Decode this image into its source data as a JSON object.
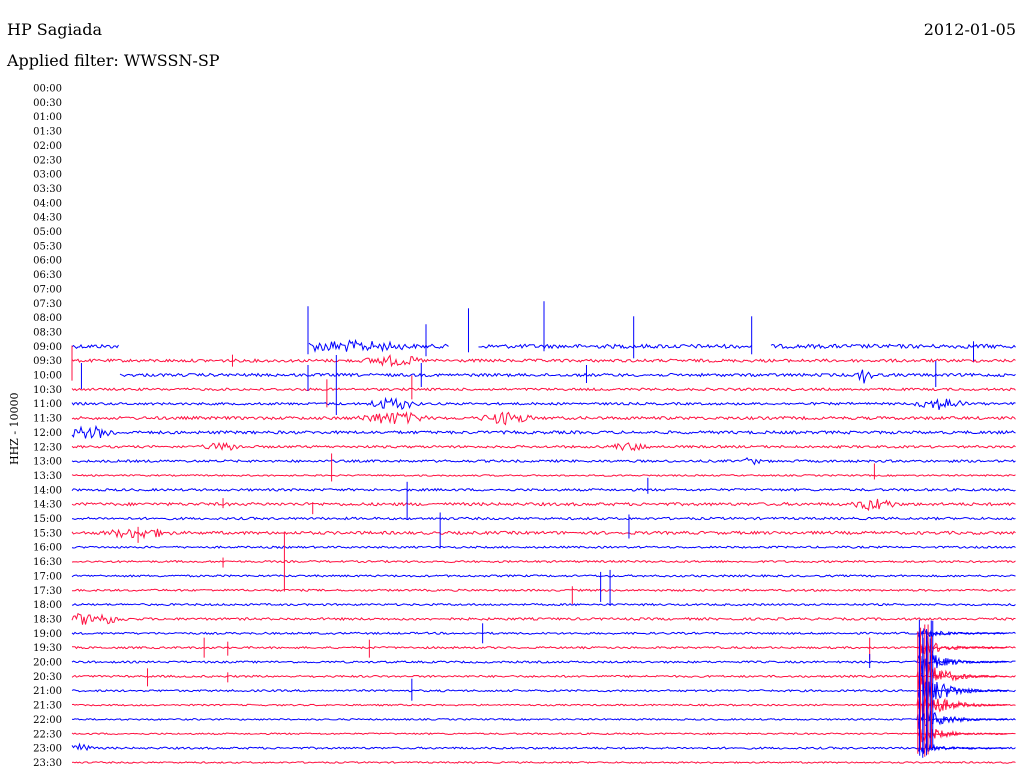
{
  "header": {
    "station": "HP Sagiada",
    "date": "2012-01-05",
    "filter": "Applied filter: WWSSN-SP"
  },
  "chart_data": {
    "type": "line",
    "ylabel": "HHZ - 10000",
    "colors": {
      "a": "#ff1040",
      "b": "#0000ff"
    },
    "rows": [
      {
        "label": "00:00",
        "trace": false
      },
      {
        "label": "00:30",
        "trace": false
      },
      {
        "label": "01:00",
        "trace": false
      },
      {
        "label": "01:30",
        "trace": false
      },
      {
        "label": "02:00",
        "trace": false
      },
      {
        "label": "02:30",
        "trace": false
      },
      {
        "label": "03:00",
        "trace": false
      },
      {
        "label": "03:30",
        "trace": false
      },
      {
        "label": "04:00",
        "trace": false
      },
      {
        "label": "04:30",
        "trace": false
      },
      {
        "label": "05:00",
        "trace": false
      },
      {
        "label": "05:30",
        "trace": false
      },
      {
        "label": "06:00",
        "trace": false
      },
      {
        "label": "06:30",
        "trace": false
      },
      {
        "label": "07:00",
        "trace": false
      },
      {
        "label": "07:30",
        "trace": false
      },
      {
        "label": "08:00",
        "trace": false
      },
      {
        "label": "08:30",
        "trace": false
      },
      {
        "label": "09:00",
        "trace": true,
        "color": "b",
        "noise": 2,
        "gaps": [
          [
            0.05,
            0.25
          ],
          [
            0.4,
            0.43
          ],
          [
            0.72,
            0.74
          ]
        ]
      },
      {
        "label": "09:30",
        "trace": true,
        "color": "a",
        "noise": 1.5
      },
      {
        "label": "10:00",
        "trace": true,
        "color": "b",
        "noise": 1.5,
        "gaps": [
          [
            0.0,
            0.05
          ]
        ]
      },
      {
        "label": "10:30",
        "trace": true,
        "color": "a",
        "noise": 1.2
      },
      {
        "label": "11:00",
        "trace": true,
        "color": "b",
        "noise": 1.2
      },
      {
        "label": "11:30",
        "trace": true,
        "color": "a",
        "noise": 1.5
      },
      {
        "label": "12:00",
        "trace": true,
        "color": "b",
        "noise": 1.5
      },
      {
        "label": "12:30",
        "trace": true,
        "color": "a",
        "noise": 1.2
      },
      {
        "label": "13:00",
        "trace": true,
        "color": "b",
        "noise": 1.2
      },
      {
        "label": "13:30",
        "trace": true,
        "color": "a",
        "noise": 0.8
      },
      {
        "label": "14:00",
        "trace": true,
        "color": "b",
        "noise": 1.2
      },
      {
        "label": "14:30",
        "trace": true,
        "color": "a",
        "noise": 1.5
      },
      {
        "label": "15:00",
        "trace": true,
        "color": "b",
        "noise": 1.2
      },
      {
        "label": "15:30",
        "trace": true,
        "color": "a",
        "noise": 1.5
      },
      {
        "label": "16:00",
        "trace": true,
        "color": "b",
        "noise": 1.0
      },
      {
        "label": "16:30",
        "trace": true,
        "color": "a",
        "noise": 1.0
      },
      {
        "label": "17:00",
        "trace": true,
        "color": "b",
        "noise": 1.0
      },
      {
        "label": "17:30",
        "trace": true,
        "color": "a",
        "noise": 1.0
      },
      {
        "label": "18:00",
        "trace": true,
        "color": "b",
        "noise": 1.0
      },
      {
        "label": "18:30",
        "trace": true,
        "color": "a",
        "noise": 1.2
      },
      {
        "label": "19:00",
        "trace": true,
        "color": "b",
        "noise": 1.0
      },
      {
        "label": "19:30",
        "trace": true,
        "color": "a",
        "noise": 1.0
      },
      {
        "label": "20:00",
        "trace": true,
        "color": "b",
        "noise": 1.0
      },
      {
        "label": "20:30",
        "trace": true,
        "color": "a",
        "noise": 1.0
      },
      {
        "label": "21:00",
        "trace": true,
        "color": "b",
        "noise": 1.0
      },
      {
        "label": "21:30",
        "trace": true,
        "color": "a",
        "noise": 0.8
      },
      {
        "label": "22:00",
        "trace": true,
        "color": "b",
        "noise": 0.8
      },
      {
        "label": "22:30",
        "trace": true,
        "color": "a",
        "noise": 0.8
      },
      {
        "label": "23:00",
        "trace": true,
        "color": "b",
        "noise": 1.0
      },
      {
        "label": "23:30",
        "trace": true,
        "color": "a",
        "noise": 0.8
      }
    ],
    "bursts": [
      {
        "row": 18,
        "t": 0.29,
        "w": 0.15,
        "amp": 4
      },
      {
        "row": 19,
        "t": 0.34,
        "w": 0.07,
        "amp": 4
      },
      {
        "row": 20,
        "t": 0.84,
        "w": 0.02,
        "amp": 7
      },
      {
        "row": 22,
        "t": 0.34,
        "w": 0.06,
        "amp": 5
      },
      {
        "row": 22,
        "t": 0.92,
        "w": 0.06,
        "amp": 5
      },
      {
        "row": 23,
        "t": 0.34,
        "w": 0.08,
        "amp": 5
      },
      {
        "row": 23,
        "t": 0.46,
        "w": 0.06,
        "amp": 5
      },
      {
        "row": 24,
        "t": 0.02,
        "w": 0.06,
        "amp": 5
      },
      {
        "row": 25,
        "t": 0.16,
        "w": 0.05,
        "amp": 3
      },
      {
        "row": 25,
        "t": 0.59,
        "w": 0.05,
        "amp": 3
      },
      {
        "row": 26,
        "t": 0.72,
        "w": 0.02,
        "amp": 3
      },
      {
        "row": 29,
        "t": 0.85,
        "w": 0.05,
        "amp": 5
      },
      {
        "row": 31,
        "t": 0.07,
        "w": 0.08,
        "amp": 4
      },
      {
        "row": 37,
        "t": 0.02,
        "w": 0.08,
        "amp": 5
      },
      {
        "row": 46,
        "t": 0.0,
        "w": 0.05,
        "amp": 4
      }
    ],
    "spikes": [
      {
        "row": 18,
        "t": 0.25,
        "up": 40,
        "down": 8
      },
      {
        "row": 18,
        "t": 0.375,
        "up": 22,
        "down": 10
      },
      {
        "row": 18,
        "t": 0.42,
        "up": 38,
        "down": 6
      },
      {
        "row": 18,
        "t": 0.5,
        "up": 45,
        "down": 5
      },
      {
        "row": 18,
        "t": 0.595,
        "up": 30,
        "down": 12
      },
      {
        "row": 18,
        "t": 0.72,
        "up": 30,
        "down": 8
      },
      {
        "row": 18,
        "t": 0.955,
        "up": 5,
        "down": 15
      },
      {
        "row": 19,
        "t": 0.0,
        "up": 15,
        "down": 20
      },
      {
        "row": 19,
        "t": 0.17,
        "up": 6,
        "down": 6
      },
      {
        "row": 20,
        "t": 0.01,
        "up": 12,
        "down": 14
      },
      {
        "row": 20,
        "t": 0.25,
        "up": 10,
        "down": 16
      },
      {
        "row": 20,
        "t": 0.28,
        "up": 20,
        "down": 40
      },
      {
        "row": 20,
        "t": 0.37,
        "up": 12,
        "down": 12
      },
      {
        "row": 20,
        "t": 0.545,
        "up": 10,
        "down": 8
      },
      {
        "row": 20,
        "t": 0.915,
        "up": 14,
        "down": 12
      },
      {
        "row": 21,
        "t": 0.27,
        "up": 10,
        "down": 18
      },
      {
        "row": 21,
        "t": 0.36,
        "up": 14,
        "down": 10
      },
      {
        "row": 27,
        "t": 0.275,
        "up": 22,
        "down": 6
      },
      {
        "row": 27,
        "t": 0.85,
        "up": 12,
        "down": 4
      },
      {
        "row": 28,
        "t": 0.61,
        "up": 12,
        "down": 4
      },
      {
        "row": 28,
        "t": 0.355,
        "up": 8,
        "down": 30
      },
      {
        "row": 29,
        "t": 0.16,
        "up": 6,
        "down": 4
      },
      {
        "row": 29,
        "t": 0.255,
        "up": 2,
        "down": 10
      },
      {
        "row": 30,
        "t": 0.39,
        "up": 6,
        "down": 30
      },
      {
        "row": 30,
        "t": 0.59,
        "up": 4,
        "down": 20
      },
      {
        "row": 31,
        "t": 0.07,
        "up": 6,
        "down": 10
      },
      {
        "row": 33,
        "t": 0.16,
        "up": 4,
        "down": 6
      },
      {
        "row": 33,
        "t": 0.225,
        "up": 30,
        "down": 30
      },
      {
        "row": 34,
        "t": 0.57,
        "up": 6,
        "down": 30
      },
      {
        "row": 34,
        "t": 0.56,
        "up": 4,
        "down": 26
      },
      {
        "row": 35,
        "t": 0.53,
        "up": 4,
        "down": 14
      },
      {
        "row": 38,
        "t": 0.435,
        "up": 10,
        "down": 10
      },
      {
        "row": 39,
        "t": 0.14,
        "up": 10,
        "down": 10
      },
      {
        "row": 39,
        "t": 0.165,
        "up": 6,
        "down": 8
      },
      {
        "row": 39,
        "t": 0.315,
        "up": 8,
        "down": 10
      },
      {
        "row": 39,
        "t": 0.845,
        "up": 10,
        "down": 12
      },
      {
        "row": 40,
        "t": 0.845,
        "up": 8,
        "down": 6
      },
      {
        "row": 41,
        "t": 0.08,
        "up": 8,
        "down": 10
      },
      {
        "row": 41,
        "t": 0.165,
        "up": 4,
        "down": 6
      },
      {
        "row": 42,
        "t": 0.36,
        "up": 12,
        "down": 10
      }
    ],
    "event": {
      "t": 0.895,
      "start_row": 38,
      "end_row": 46,
      "peak": 42
    }
  }
}
